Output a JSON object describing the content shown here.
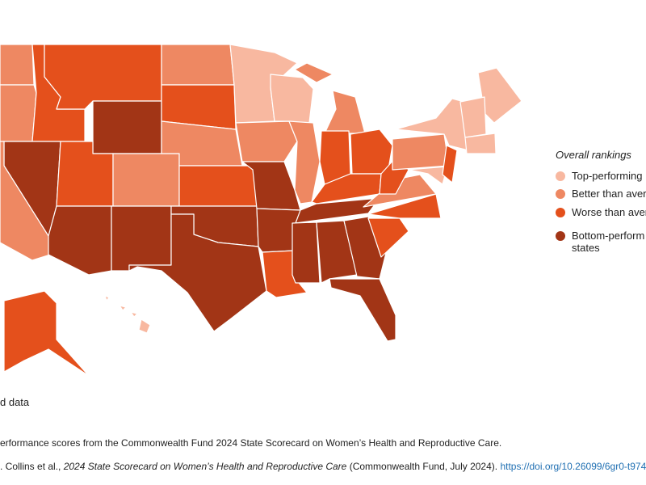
{
  "legend": {
    "title": "Overall rankings",
    "items": [
      {
        "lines": [
          "Top-performing"
        ],
        "color": "#f8b8a0"
      },
      {
        "lines": [
          "Better than avera"
        ],
        "color": "#ee8862"
      },
      {
        "lines": [
          "Worse than aver"
        ],
        "color": "#e4501c"
      },
      {
        "lines": [
          "Bottom-perform",
          "states"
        ],
        "color": "#a23516"
      }
    ]
  },
  "no_data": "d data",
  "notes": "erformance scores from the Commonwealth Fund 2024 State Scorecard on Women’s Health and Reproductive Care.",
  "source": {
    "lead": ". Collins et al., ",
    "title": "2024 State Scorecard on Women’s Health and Reproductive Care",
    "tail": " (Commonwealth Fund, July 2024). ",
    "link": "https://doi.org/10.26099/6gr0-t974"
  }
}
